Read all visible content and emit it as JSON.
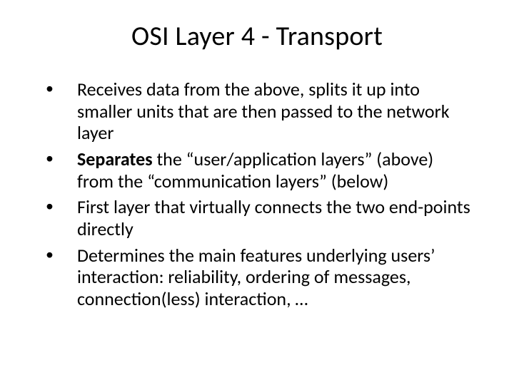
{
  "title": "OSI Layer 4 - Transport",
  "bullets": [
    {
      "runs": [
        {
          "text": "Receives data from the above, splits it up into smaller units that are then passed to the network layer",
          "bold": false
        }
      ]
    },
    {
      "runs": [
        {
          "text": "Separates",
          "bold": true
        },
        {
          "text": " the “user/application layers” (above) from the “communication layers” (below)",
          "bold": false
        }
      ]
    },
    {
      "runs": [
        {
          "text": "First layer that virtually connects the two end-points directly",
          "bold": false
        }
      ]
    },
    {
      "runs": [
        {
          "text": "Determines the main features underlying users’ interaction: reliability, ordering of messages, connection(less) interaction, …",
          "bold": false
        }
      ]
    }
  ]
}
